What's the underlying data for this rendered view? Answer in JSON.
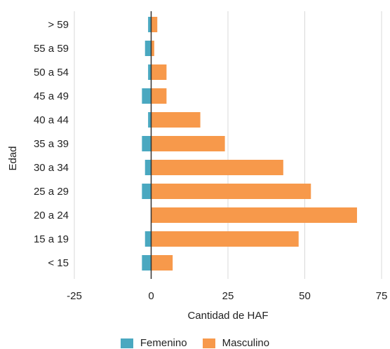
{
  "chart_data": {
    "type": "bar",
    "orientation": "horizontal",
    "xlabel": "Cantidad de HAF",
    "ylabel": "Edad",
    "xlim": [
      -25,
      75
    ],
    "xticks": [
      -25,
      0,
      25,
      50,
      75
    ],
    "grid": true,
    "legend_position": "bottom",
    "categories": [
      "> 59",
      "55 a 59",
      "50 a 54",
      "45 a 49",
      "40 a 44",
      "35 a 39",
      "30 a 34",
      "25 a 29",
      "20 a 24",
      "15 a 19",
      "< 15"
    ],
    "series": [
      {
        "name": "Femenino",
        "color": "#4aa8c0",
        "values": [
          -1,
          -2,
          -1,
          -3,
          -1,
          -3,
          -2,
          -3,
          0,
          -2,
          -3
        ]
      },
      {
        "name": "Masculino",
        "color": "#f7994b",
        "values": [
          2,
          1,
          5,
          5,
          16,
          24,
          43,
          52,
          67,
          48,
          7
        ]
      }
    ]
  }
}
